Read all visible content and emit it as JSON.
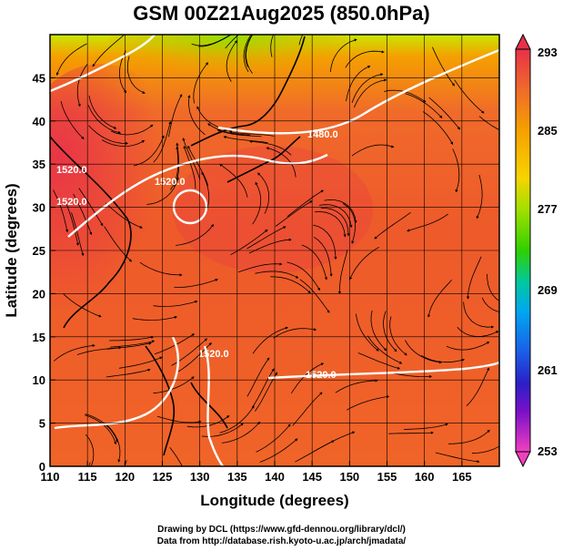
{
  "title": "GSM 00Z21Aug2025 (850.0hPa)",
  "xaxis": {
    "label": "Longitude (degrees)",
    "ticks": [
      "110",
      "115",
      "120",
      "125",
      "130",
      "135",
      "140",
      "145",
      "150",
      "155",
      "160",
      "165"
    ]
  },
  "yaxis": {
    "label": "Latitude  (degrees)",
    "ticks": [
      "0",
      "5",
      "10",
      "15",
      "20",
      "25",
      "30",
      "35",
      "40",
      "45"
    ]
  },
  "colorbar": {
    "labels": [
      "293",
      "285",
      "277",
      "269",
      "261",
      "253"
    ],
    "colors": [
      "#e8304a",
      "#f06a2a",
      "#f5a000",
      "#f7d400",
      "#c8e800",
      "#3ad000",
      "#00c8a0",
      "#00a8f0",
      "#1a60e8",
      "#2a20c8",
      "#7a10c8",
      "#d010c0",
      "#f040c0"
    ]
  },
  "contours": [
    {
      "label": "1480.0"
    },
    {
      "label": "1520.0"
    },
    {
      "label": "1520.0"
    },
    {
      "label": "1520.0"
    },
    {
      "label": "1520.0"
    },
    {
      "label": "1520.0"
    }
  ],
  "credits": {
    "line1": "Drawing by DCL (https://www.gfd-dennou.org/library/dcl/)",
    "line2": "Data from http://database.rish.kyoto-u.ac.jp/arch/jmadata/"
  }
}
